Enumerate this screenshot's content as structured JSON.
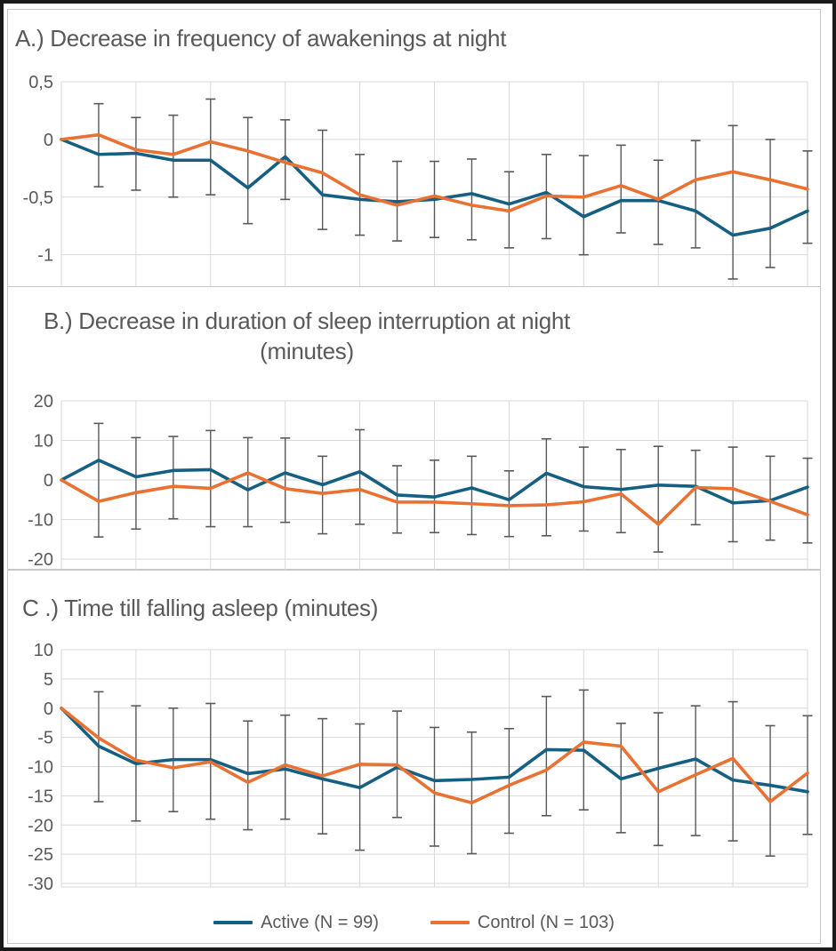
{
  "figure": {
    "colors": {
      "active": "#156082",
      "control": "#E97132",
      "grid": "#D9D9D9",
      "error_bar": "#595959",
      "text": "#595959",
      "panel_border": "#C8C8C8",
      "outer_border": "#1A1A1A"
    },
    "legend": {
      "active_label": "Active (N = 99)",
      "control_label": "Control (N = 103)"
    }
  },
  "chart_data": [
    {
      "id": "A",
      "type": "line",
      "title": "A.) Decrease in frequency of awakenings at night",
      "xlabel": "",
      "ylabel": "",
      "x": [
        0,
        1,
        2,
        3,
        4,
        5,
        6,
        7,
        8,
        9,
        10,
        11,
        12,
        13,
        14,
        15,
        16,
        17,
        18,
        19,
        20
      ],
      "x_tick_labels_visible": false,
      "vertical_gridline_every": 2,
      "ylim": [
        -1.28,
        0.5
      ],
      "yticks": {
        "values": [
          0.5,
          0,
          -0.5,
          -1
        ],
        "labels": [
          "0,5",
          "0",
          "-0,5",
          "-1"
        ]
      },
      "series": [
        {
          "name": "Active (N = 99)",
          "color_key": "active",
          "values": [
            0,
            -0.13,
            -0.12,
            -0.18,
            -0.18,
            -0.42,
            -0.15,
            -0.48,
            -0.52,
            -0.54,
            -0.52,
            -0.47,
            -0.56,
            -0.46,
            -0.67,
            -0.53,
            -0.53,
            -0.62,
            -0.83,
            -0.77,
            -0.62
          ]
        },
        {
          "name": "Control (N = 103)",
          "color_key": "control",
          "values": [
            0,
            0.04,
            -0.09,
            -0.13,
            -0.02,
            -0.1,
            -0.2,
            -0.29,
            -0.48,
            -0.57,
            -0.49,
            -0.57,
            -0.62,
            -0.49,
            -0.5,
            -0.4,
            -0.52,
            -0.35,
            -0.28,
            -0.35,
            -0.43
          ]
        }
      ],
      "error_bars": {
        "x": [
          1,
          2,
          3,
          4,
          5,
          6,
          7,
          8,
          9,
          10,
          11,
          12,
          13,
          14,
          15,
          16,
          17,
          18,
          19,
          20
        ],
        "high": [
          0.31,
          0.19,
          0.21,
          0.35,
          0.19,
          0.17,
          0.08,
          -0.13,
          -0.19,
          -0.19,
          -0.17,
          -0.28,
          -0.13,
          -0.14,
          -0.05,
          -0.18,
          -0.01,
          0.12,
          0.0,
          -0.1
        ],
        "low": [
          -0.41,
          -0.44,
          -0.5,
          -0.48,
          -0.73,
          -0.52,
          -0.78,
          -0.83,
          -0.88,
          -0.85,
          -0.87,
          -0.94,
          -0.86,
          -1.0,
          -0.81,
          -0.91,
          -0.94,
          -1.21,
          -1.11,
          -0.9
        ]
      }
    },
    {
      "id": "B",
      "type": "line",
      "title": "B.) Decrease in duration of sleep interruption at night",
      "title_line2": "(minutes)",
      "xlabel": "",
      "ylabel": "",
      "x": [
        0,
        1,
        2,
        3,
        4,
        5,
        6,
        7,
        8,
        9,
        10,
        11,
        12,
        13,
        14,
        15,
        16,
        17,
        18,
        19,
        20
      ],
      "x_tick_labels_visible": false,
      "vertical_gridline_every": 2,
      "ylim": [
        -22.9,
        20
      ],
      "yticks": {
        "values": [
          20,
          10,
          0,
          -10,
          -20
        ],
        "labels": [
          "20",
          "10",
          "0",
          "-10",
          "-20"
        ]
      },
      "series": [
        {
          "name": "Active (N = 99)",
          "color_key": "active",
          "values": [
            0,
            5.0,
            0.8,
            2.4,
            2.6,
            -2.5,
            1.8,
            -1.2,
            2.1,
            -3.8,
            -4.3,
            -2.0,
            -5.0,
            1.7,
            -1.7,
            -2.4,
            -1.3,
            -1.6,
            -5.8,
            -5.2,
            -1.8
          ]
        },
        {
          "name": "Control (N = 103)",
          "color_key": "control",
          "values": [
            0,
            -5.4,
            -3.2,
            -1.6,
            -2.1,
            1.8,
            -2.2,
            -3.4,
            -2.4,
            -5.6,
            -5.6,
            -6.0,
            -6.5,
            -6.3,
            -5.5,
            -3.5,
            -11.2,
            -1.9,
            -2.2,
            -5.4,
            -8.8
          ]
        }
      ],
      "error_bars": {
        "x": [
          1,
          2,
          3,
          4,
          5,
          6,
          7,
          8,
          9,
          10,
          11,
          12,
          13,
          14,
          15,
          16,
          17,
          18,
          19,
          20
        ],
        "high": [
          14.3,
          10.7,
          11.0,
          12.5,
          10.7,
          10.6,
          6.0,
          12.7,
          3.6,
          5.0,
          6.0,
          2.3,
          10.4,
          8.3,
          7.7,
          8.5,
          7.5,
          8.3,
          6.0,
          5.5
        ],
        "low": [
          -14.4,
          -12.4,
          -9.8,
          -11.8,
          -11.8,
          -10.7,
          -13.6,
          -11.2,
          -13.4,
          -13.3,
          -13.8,
          -14.3,
          -14.1,
          -12.9,
          -13.3,
          -18.2,
          -11.3,
          -15.6,
          -15.2,
          -15.9
        ]
      }
    },
    {
      "id": "C",
      "type": "line",
      "title": "C .) Time till falling asleep (minutes)",
      "xlabel": "",
      "ylabel": "",
      "x": [
        0,
        1,
        2,
        3,
        4,
        5,
        6,
        7,
        8,
        9,
        10,
        11,
        12,
        13,
        14,
        15,
        16,
        17,
        18,
        19,
        20
      ],
      "x_tick_labels_visible": false,
      "vertical_gridline_every": 2,
      "ylim": [
        -30.6,
        10
      ],
      "yticks": {
        "values": [
          10,
          5,
          0,
          -5,
          -10,
          -15,
          -20,
          -25,
          -30
        ],
        "labels": [
          "10",
          "5",
          "0",
          "-5",
          "-10",
          "-15",
          "-20",
          "-25",
          "-30"
        ]
      },
      "series": [
        {
          "name": "Active (N = 99)",
          "color_key": "active",
          "values": [
            0,
            -6.5,
            -9.5,
            -8.8,
            -8.8,
            -11.2,
            -10.4,
            -12.1,
            -13.6,
            -10.1,
            -12.4,
            -12.2,
            -11.8,
            -7.1,
            -7.2,
            -12.1,
            -10.3,
            -8.7,
            -12.3,
            -13.2,
            -14.3
          ]
        },
        {
          "name": "Control (N = 103)",
          "color_key": "control",
          "values": [
            0,
            -5.1,
            -8.9,
            -10.2,
            -9.2,
            -12.7,
            -9.7,
            -11.6,
            -9.6,
            -9.7,
            -14.5,
            -16.2,
            -13.2,
            -10.6,
            -5.8,
            -6.5,
            -14.3,
            -11.4,
            -8.6,
            -16.0,
            -11.1
          ]
        }
      ],
      "error_bars": {
        "x": [
          1,
          2,
          3,
          4,
          5,
          6,
          7,
          8,
          9,
          10,
          11,
          12,
          13,
          14,
          15,
          16,
          17,
          18,
          19,
          20
        ],
        "high": [
          2.8,
          0.4,
          0.0,
          0.8,
          -2.2,
          -1.2,
          -1.8,
          -2.7,
          -0.5,
          -3.3,
          -4.1,
          -3.5,
          2.0,
          3.1,
          -2.6,
          -0.8,
          0.4,
          1.1,
          -3.0,
          -1.3
        ],
        "low": [
          -16.0,
          -19.3,
          -17.7,
          -19.0,
          -20.8,
          -19.0,
          -21.5,
          -24.3,
          -18.7,
          -23.6,
          -24.9,
          -21.4,
          -18.4,
          -17.4,
          -21.3,
          -23.5,
          -21.8,
          -22.7,
          -25.3,
          -21.6
        ]
      }
    }
  ]
}
